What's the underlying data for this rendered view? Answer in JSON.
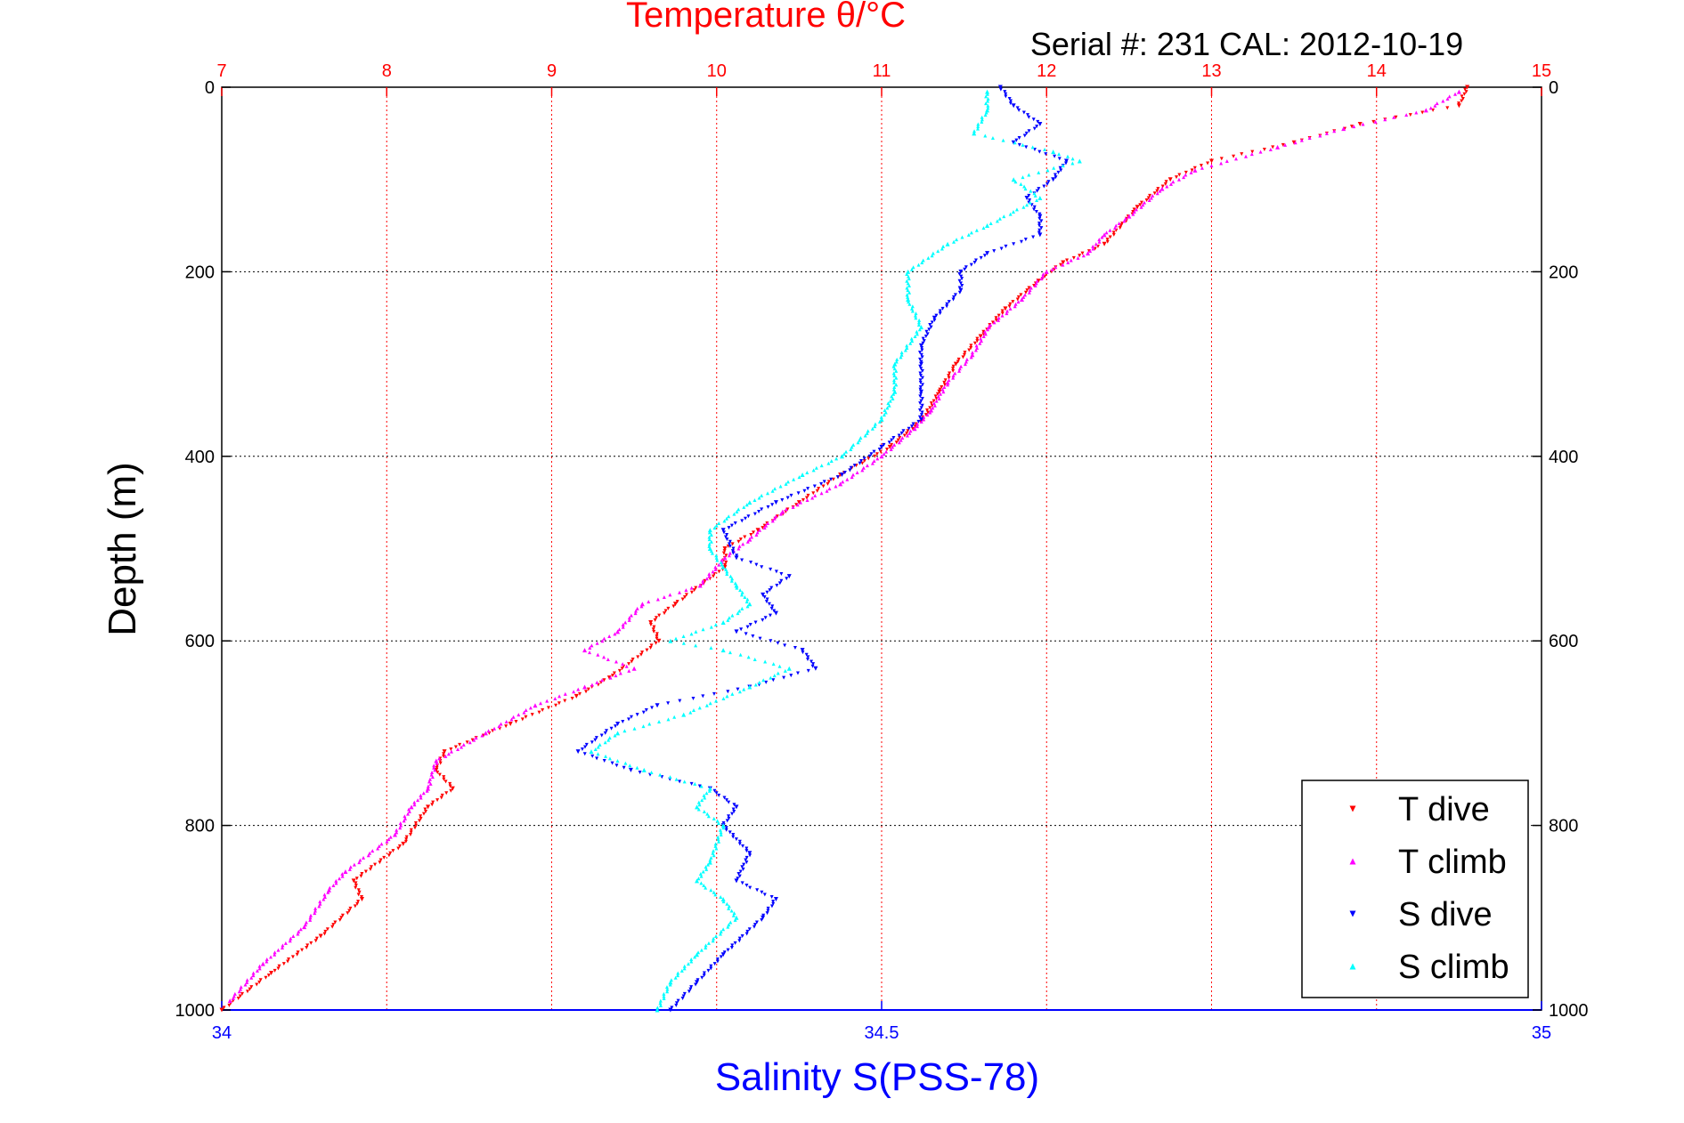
{
  "chart_data": {
    "type": "scatter",
    "title": "Temperature θ/°C",
    "subtitle": "Serial #: 231  CAL: 2012-10-19",
    "xlabel_top": "Temperature θ/°C",
    "xlabel_bottom": "Salinity S(PSS-78)",
    "ylabel": "Depth (m)",
    "top_axis": {
      "range": [
        7,
        15
      ],
      "ticks": [
        "7",
        "8",
        "9",
        "10",
        "11",
        "12",
        "13",
        "14",
        "15"
      ],
      "color": "#ff0000"
    },
    "bottom_axis": {
      "range": [
        34,
        35
      ],
      "ticks": [
        "34",
        "34.5",
        "35"
      ],
      "color": "#0000ff"
    },
    "y_axis": {
      "range": [
        0,
        1000
      ],
      "reversed": true,
      "ticks": [
        "0",
        "200",
        "400",
        "600",
        "800",
        "1000"
      ]
    },
    "grid": true,
    "legend_position": "bottom-right",
    "series": [
      {
        "name": "T dive",
        "axis": "top",
        "color": "#ff0000",
        "marker": "triangle-down",
        "points": [
          [
            14.55,
            0
          ],
          [
            14.5,
            20
          ],
          [
            13.9,
            40
          ],
          [
            13.5,
            60
          ],
          [
            13.0,
            80
          ],
          [
            12.75,
            100
          ],
          [
            12.55,
            130
          ],
          [
            12.45,
            150
          ],
          [
            12.35,
            170
          ],
          [
            12.1,
            190
          ],
          [
            11.95,
            210
          ],
          [
            11.75,
            240
          ],
          [
            11.6,
            270
          ],
          [
            11.45,
            300
          ],
          [
            11.35,
            330
          ],
          [
            11.25,
            360
          ],
          [
            11.05,
            390
          ],
          [
            10.75,
            420
          ],
          [
            10.5,
            450
          ],
          [
            10.25,
            480
          ],
          [
            10.05,
            500
          ],
          [
            10.05,
            520
          ],
          [
            9.75,
            560
          ],
          [
            9.6,
            580
          ],
          [
            9.65,
            600
          ],
          [
            9.35,
            640
          ],
          [
            9.15,
            660
          ],
          [
            8.75,
            690
          ],
          [
            8.35,
            720
          ],
          [
            8.3,
            740
          ],
          [
            8.4,
            760
          ],
          [
            8.25,
            780
          ],
          [
            8.1,
            820
          ],
          [
            7.8,
            860
          ],
          [
            7.85,
            880
          ],
          [
            7.6,
            920
          ],
          [
            7.3,
            960
          ],
          [
            7.0,
            1000
          ]
        ]
      },
      {
        "name": "T climb",
        "axis": "top",
        "color": "#ff00ff",
        "marker": "triangle-up",
        "points": [
          [
            14.5,
            5
          ],
          [
            14.3,
            25
          ],
          [
            13.8,
            45
          ],
          [
            13.4,
            65
          ],
          [
            12.9,
            90
          ],
          [
            12.7,
            110
          ],
          [
            12.5,
            140
          ],
          [
            12.35,
            160
          ],
          [
            12.25,
            180
          ],
          [
            12.0,
            200
          ],
          [
            11.85,
            230
          ],
          [
            11.65,
            260
          ],
          [
            11.55,
            290
          ],
          [
            11.4,
            320
          ],
          [
            11.3,
            350
          ],
          [
            11.2,
            370
          ],
          [
            11.0,
            400
          ],
          [
            10.75,
            430
          ],
          [
            10.4,
            460
          ],
          [
            10.2,
            490
          ],
          [
            10.05,
            510
          ],
          [
            9.9,
            540
          ],
          [
            9.55,
            560
          ],
          [
            9.4,
            590
          ],
          [
            9.2,
            610
          ],
          [
            9.5,
            630
          ],
          [
            9.2,
            650
          ],
          [
            8.9,
            670
          ],
          [
            8.6,
            700
          ],
          [
            8.3,
            730
          ],
          [
            8.25,
            760
          ],
          [
            8.15,
            780
          ],
          [
            8.05,
            810
          ],
          [
            7.75,
            850
          ],
          [
            7.65,
            870
          ],
          [
            7.5,
            910
          ],
          [
            7.25,
            950
          ],
          [
            7.05,
            990
          ]
        ]
      },
      {
        "name": "S dive",
        "axis": "bottom",
        "color": "#0000ff",
        "marker": "triangle-down",
        "points": [
          [
            34.59,
            0
          ],
          [
            34.6,
            20
          ],
          [
            34.62,
            40
          ],
          [
            34.6,
            60
          ],
          [
            34.64,
            80
          ],
          [
            34.63,
            100
          ],
          [
            34.61,
            120
          ],
          [
            34.62,
            140
          ],
          [
            34.62,
            160
          ],
          [
            34.58,
            180
          ],
          [
            34.56,
            200
          ],
          [
            34.56,
            220
          ],
          [
            34.54,
            250
          ],
          [
            34.53,
            280
          ],
          [
            34.53,
            300
          ],
          [
            34.53,
            330
          ],
          [
            34.53,
            360
          ],
          [
            34.5,
            390
          ],
          [
            34.47,
            420
          ],
          [
            34.42,
            450
          ],
          [
            34.38,
            480
          ],
          [
            34.39,
            510
          ],
          [
            34.43,
            530
          ],
          [
            34.41,
            550
          ],
          [
            34.42,
            570
          ],
          [
            34.39,
            590
          ],
          [
            34.44,
            610
          ],
          [
            34.45,
            630
          ],
          [
            34.4,
            650
          ],
          [
            34.33,
            670
          ],
          [
            34.3,
            690
          ],
          [
            34.27,
            720
          ],
          [
            34.31,
            740
          ],
          [
            34.37,
            760
          ],
          [
            34.39,
            780
          ],
          [
            34.38,
            800
          ],
          [
            34.4,
            830
          ],
          [
            34.39,
            860
          ],
          [
            34.42,
            880
          ],
          [
            34.41,
            900
          ],
          [
            34.38,
            940
          ],
          [
            34.36,
            970
          ],
          [
            34.34,
            1000
          ]
        ]
      },
      {
        "name": "S climb",
        "axis": "bottom",
        "color": "#00ffff",
        "marker": "triangle-up",
        "points": [
          [
            34.58,
            5
          ],
          [
            34.58,
            25
          ],
          [
            34.57,
            50
          ],
          [
            34.63,
            70
          ],
          [
            34.65,
            80
          ],
          [
            34.6,
            100
          ],
          [
            34.62,
            120
          ],
          [
            34.58,
            150
          ],
          [
            34.55,
            170
          ],
          [
            34.52,
            200
          ],
          [
            34.52,
            230
          ],
          [
            34.53,
            260
          ],
          [
            34.51,
            300
          ],
          [
            34.51,
            330
          ],
          [
            34.5,
            360
          ],
          [
            34.47,
            400
          ],
          [
            34.44,
            420
          ],
          [
            34.4,
            450
          ],
          [
            34.37,
            480
          ],
          [
            34.37,
            500
          ],
          [
            34.38,
            520
          ],
          [
            34.39,
            540
          ],
          [
            34.4,
            560
          ],
          [
            34.38,
            580
          ],
          [
            34.34,
            600
          ],
          [
            34.38,
            610
          ],
          [
            34.43,
            630
          ],
          [
            34.4,
            650
          ],
          [
            34.35,
            680
          ],
          [
            34.3,
            700
          ],
          [
            34.28,
            720
          ],
          [
            34.32,
            740
          ],
          [
            34.37,
            760
          ],
          [
            34.36,
            780
          ],
          [
            34.38,
            800
          ],
          [
            34.37,
            840
          ],
          [
            34.36,
            860
          ],
          [
            34.38,
            880
          ],
          [
            34.39,
            900
          ],
          [
            34.36,
            940
          ],
          [
            34.34,
            970
          ],
          [
            34.33,
            1000
          ]
        ]
      }
    ]
  },
  "legend": {
    "entries": [
      {
        "label": "T dive",
        "color": "#ff0000",
        "marker": "triangle-down"
      },
      {
        "label": "T climb",
        "color": "#ff00ff",
        "marker": "triangle-up"
      },
      {
        "label": "S dive",
        "color": "#0000ff",
        "marker": "triangle-down"
      },
      {
        "label": "S climb",
        "color": "#00ffff",
        "marker": "triangle-up"
      }
    ]
  }
}
